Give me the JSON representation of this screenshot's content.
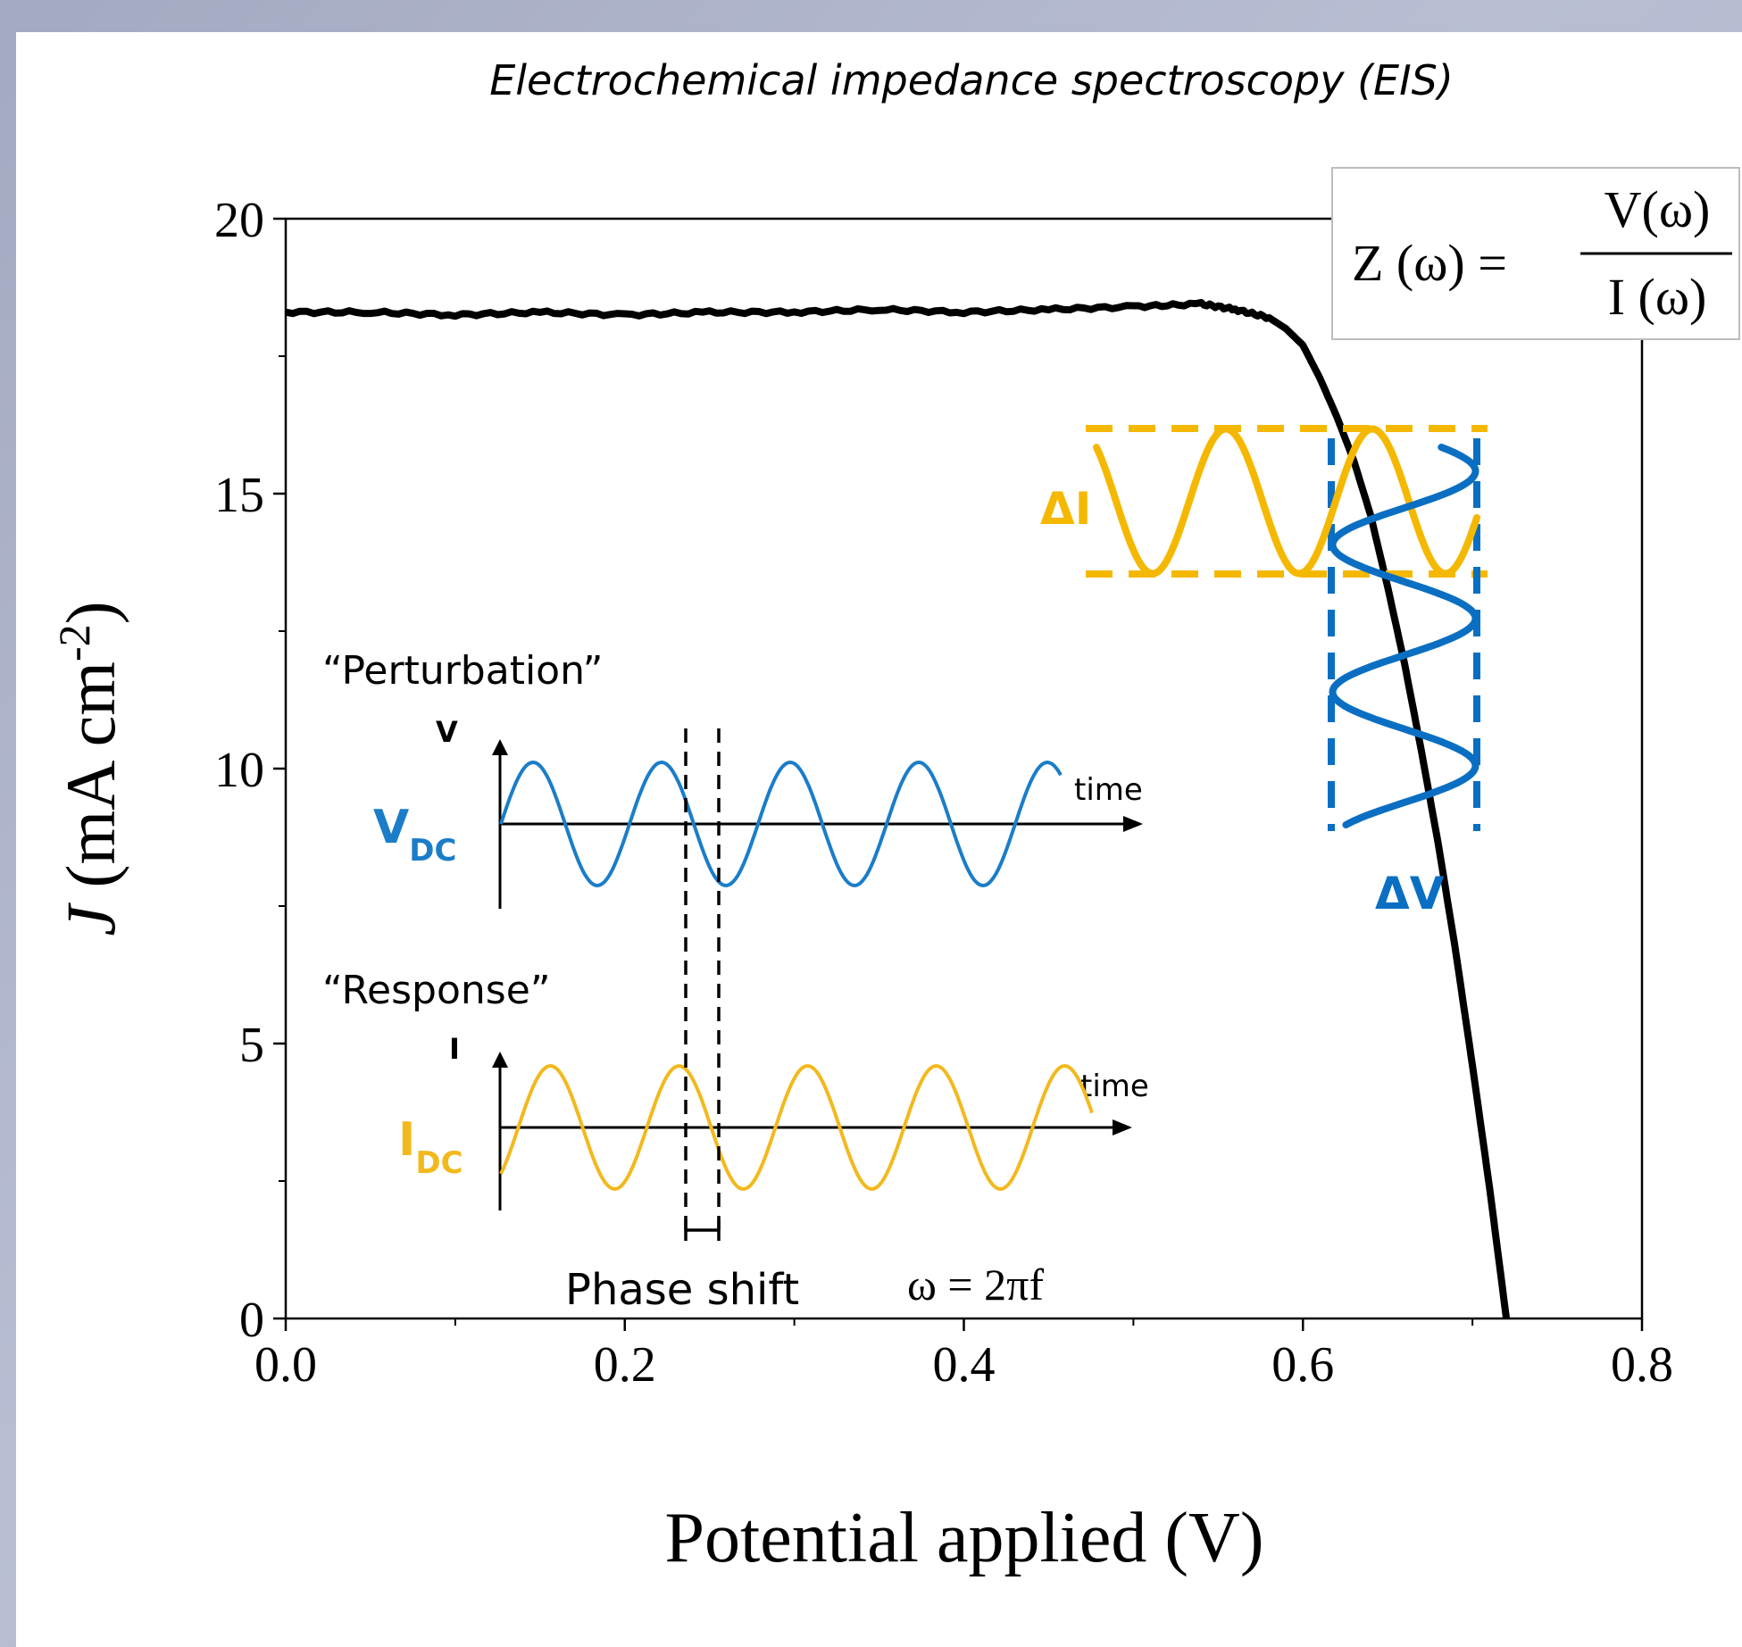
{
  "title": "Electrochemical impedance spectroscopy (EIS)",
  "formula": {
    "lhs": "Z (ω) =",
    "numerator": "V(ω)",
    "denominator": "I (ω)"
  },
  "chart_data": {
    "type": "line",
    "xlabel": "Potential applied (V)",
    "ylabel": "J (mA cm⁻²)",
    "ylabel_parts": {
      "var": "J",
      "unit": " (mA cm",
      "sup": "-2",
      "close": ")"
    },
    "xlim": [
      0.0,
      0.8
    ],
    "ylim": [
      0,
      20
    ],
    "x_ticks": [
      "0.0",
      "0.2",
      "0.4",
      "0.6",
      "0.8"
    ],
    "y_ticks": [
      "0",
      "5",
      "10",
      "15",
      "20"
    ],
    "series": [
      {
        "color": "#000000",
        "x": [
          0.0,
          0.05,
          0.1,
          0.15,
          0.2,
          0.25,
          0.3,
          0.35,
          0.4,
          0.45,
          0.5,
          0.54,
          0.56,
          0.58,
          0.59,
          0.6,
          0.61,
          0.62,
          0.63,
          0.64,
          0.65,
          0.66,
          0.67,
          0.68,
          0.69,
          0.7,
          0.71,
          0.72
        ],
        "y": [
          18.3,
          18.3,
          18.25,
          18.3,
          18.25,
          18.3,
          18.3,
          18.35,
          18.3,
          18.35,
          18.4,
          18.45,
          18.35,
          18.2,
          18.0,
          17.7,
          17.1,
          16.4,
          15.6,
          14.6,
          13.3,
          11.9,
          10.3,
          8.6,
          6.7,
          4.6,
          2.4,
          0.0
        ]
      }
    ]
  },
  "overlay": {
    "delta_i": "ΔI",
    "delta_v": "ΔV",
    "amber": "#F5B800",
    "blue": "#0A6FC2"
  },
  "inset": {
    "perturbation_label": "“Perturbation”",
    "response_label": "“Response”",
    "v_axis_label": "V",
    "i_axis_label": "I",
    "vdc_main": "V",
    "vdc_sub": "DC",
    "idc_main": "I",
    "idc_sub": "DC",
    "time_label_top": "time",
    "time_label_bottom": "time",
    "phase_shift_label": "Phase shift",
    "omega_formula": "ω = 2πf",
    "wave_blue": "#1B7DC8",
    "wave_amber": "#F2B91E"
  }
}
